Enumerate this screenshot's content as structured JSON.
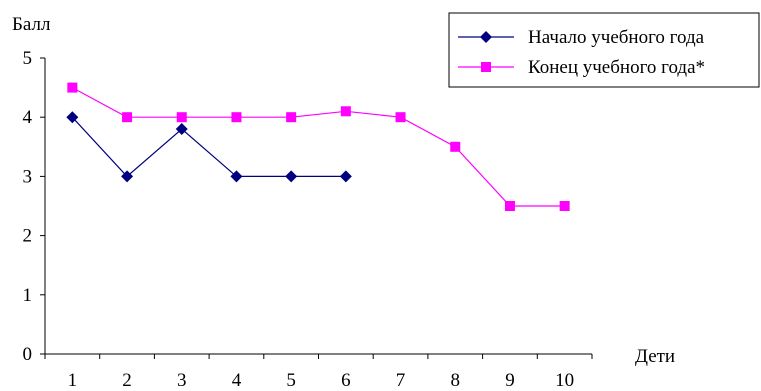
{
  "chart_data": {
    "type": "line",
    "ylabel": "Балл",
    "xlabel": "Дети",
    "categories": [
      "1",
      "2",
      "3",
      "4",
      "5",
      "6",
      "7",
      "8",
      "9",
      "10"
    ],
    "yticks": [
      "0",
      "1",
      "2",
      "3",
      "4",
      "5"
    ],
    "ylim": [
      0,
      5
    ],
    "grid": false,
    "legend_position": "top-right",
    "series": [
      {
        "name": "Начало учебного года",
        "color": "#000080",
        "marker": "diamond",
        "values": [
          4,
          3,
          3.8,
          3,
          3,
          3,
          null,
          null,
          null,
          null
        ]
      },
      {
        "name": "Конец учебного года*",
        "color": "#ff00ff",
        "marker": "square",
        "values": [
          4.5,
          4,
          4,
          4,
          4,
          4.1,
          4,
          3.5,
          2.5,
          2.5
        ]
      }
    ]
  }
}
